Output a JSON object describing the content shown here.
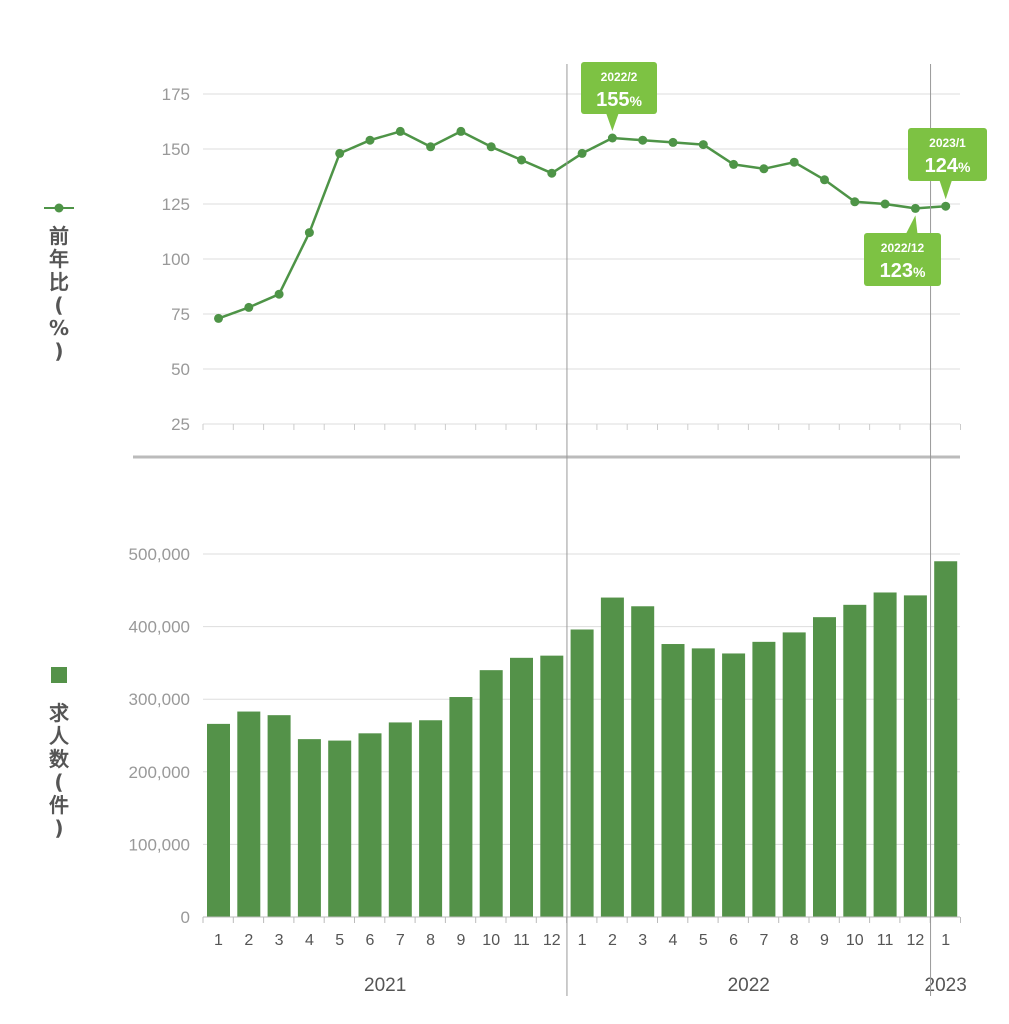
{
  "chart_data": [
    {
      "type": "line",
      "ylabel": "前年比(%)",
      "ylim": [
        25,
        175
      ],
      "yticks": [
        "25",
        "50",
        "75",
        "100",
        "125",
        "150",
        "175"
      ],
      "grid": true,
      "series": [
        {
          "values": [
            73,
            78,
            84,
            112,
            148,
            154,
            158,
            151,
            158,
            151,
            145,
            139,
            148,
            155,
            154,
            153,
            152,
            143,
            141,
            144,
            136,
            126,
            125,
            123,
            124
          ]
        }
      ],
      "color": "#4e9447",
      "annotations": [
        {
          "index": 13,
          "label": "2022/2",
          "value": "155",
          "unit": "%"
        },
        {
          "index": 24,
          "label": "2023/1",
          "value": "124",
          "unit": "%"
        },
        {
          "index": 23,
          "label": "2022/12",
          "value": "123",
          "unit": "%"
        }
      ],
      "callout_color": "#7dc243"
    },
    {
      "type": "bar",
      "ylabel": "求人数(件)",
      "ylim": [
        0,
        500000
      ],
      "yticks": [
        "0",
        "100,000",
        "200,000",
        "300,000",
        "400,000",
        "500,000"
      ],
      "grid": true,
      "series": [
        {
          "values": [
            266000,
            283000,
            278000,
            245000,
            243000,
            253000,
            268000,
            271000,
            303000,
            340000,
            357000,
            360000,
            396000,
            440000,
            428000,
            376000,
            370000,
            363000,
            379000,
            392000,
            413000,
            430000,
            447000,
            443000,
            490000
          ]
        }
      ],
      "color": "#549249"
    }
  ],
  "x_axis": {
    "months": [
      "1",
      "2",
      "3",
      "4",
      "5",
      "6",
      "7",
      "8",
      "9",
      "10",
      "11",
      "12",
      "1",
      "2",
      "3",
      "4",
      "5",
      "6",
      "7",
      "8",
      "9",
      "10",
      "11",
      "12",
      "1"
    ],
    "years": [
      {
        "label": "2021",
        "start": 0,
        "end": 11
      },
      {
        "label": "2022",
        "start": 12,
        "end": 23
      },
      {
        "label": "2023",
        "start": 24,
        "end": 24
      }
    ]
  }
}
